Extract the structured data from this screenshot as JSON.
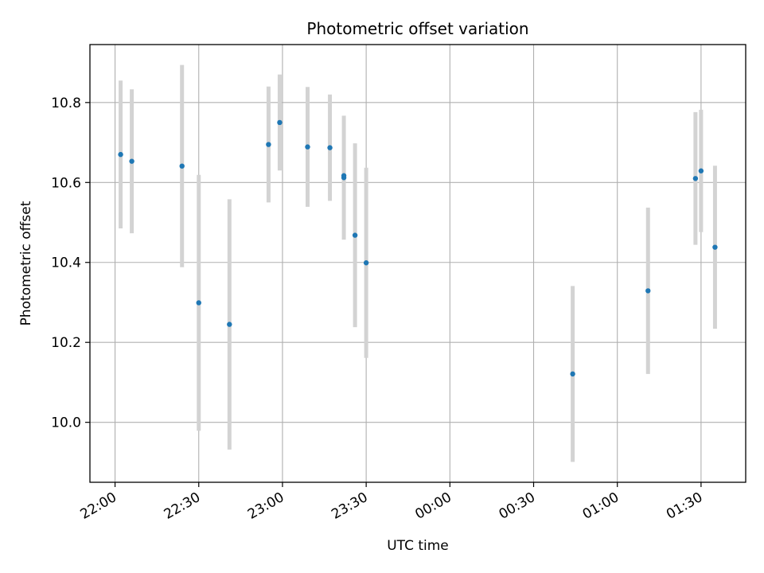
{
  "chart_data": {
    "type": "scatter",
    "title": "Photometric offset variation",
    "xlabel": "UTC time",
    "ylabel": "Photometric offset",
    "x_unit": "UTC time",
    "xlim": [
      "21:51",
      "01:46"
    ],
    "ylim": [
      9.85,
      10.945
    ],
    "grid": true,
    "x_ticks": [
      "22:00",
      "22:30",
      "23:00",
      "23:30",
      "00:00",
      "00:30",
      "01:00",
      "01:30"
    ],
    "y_ticks": [
      "10.0",
      "10.2",
      "10.4",
      "10.6",
      "10.8"
    ],
    "points": [
      {
        "x": "22:02",
        "y": 10.67,
        "err": 0.185
      },
      {
        "x": "22:06",
        "y": 10.653,
        "err": 0.18
      },
      {
        "x": "22:24",
        "y": 10.641,
        "err": 0.253
      },
      {
        "x": "22:30",
        "y": 10.299,
        "err": 0.32
      },
      {
        "x": "22:41",
        "y": 10.245,
        "err": 0.313
      },
      {
        "x": "22:55",
        "y": 10.695,
        "err": 0.145
      },
      {
        "x": "22:59",
        "y": 10.75,
        "err": 0.12
      },
      {
        "x": "23:09",
        "y": 10.689,
        "err": 0.15
      },
      {
        "x": "23:17",
        "y": 10.687,
        "err": 0.133
      },
      {
        "x": "23:22",
        "y": 10.612,
        "err": 0.155
      },
      {
        "x": "23:22",
        "y": 10.617,
        "err": 0.0
      },
      {
        "x": "23:26",
        "y": 10.468,
        "err": 0.23
      },
      {
        "x": "23:30",
        "y": 10.399,
        "err": 0.238
      },
      {
        "x": "00:44",
        "y": 10.121,
        "err": 0.22
      },
      {
        "x": "01:11",
        "y": 10.329,
        "err": 0.208
      },
      {
        "x": "01:28",
        "y": 10.61,
        "err": 0.166
      },
      {
        "x": "01:30",
        "y": 10.629,
        "err": 0.153
      },
      {
        "x": "01:35",
        "y": 10.438,
        "err": 0.204
      }
    ]
  }
}
